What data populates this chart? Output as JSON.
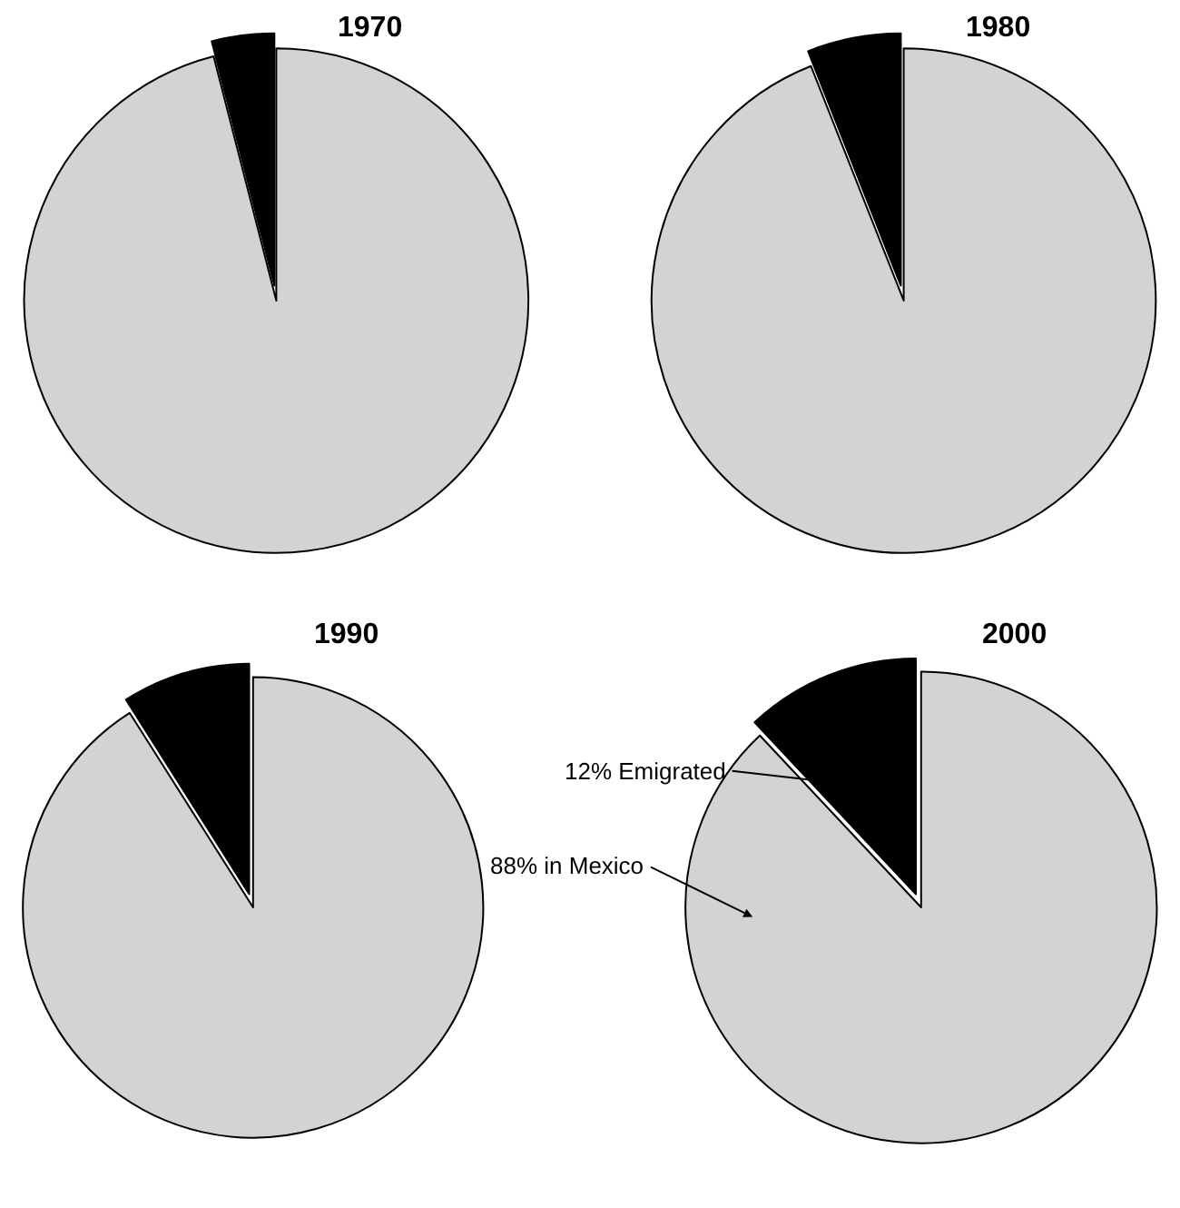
{
  "chart_data": [
    {
      "type": "pie",
      "title": "1970",
      "categories": [
        null,
        null
      ],
      "values": [
        96,
        4
      ],
      "colors": [
        "#d3d3d3",
        "#000000"
      ]
    },
    {
      "type": "pie",
      "title": "1980",
      "categories": [
        null,
        null
      ],
      "values": [
        94,
        6
      ],
      "colors": [
        "#d3d3d3",
        "#000000"
      ]
    },
    {
      "type": "pie",
      "title": "1990",
      "categories": [
        null,
        null
      ],
      "values": [
        91,
        9
      ],
      "colors": [
        "#d3d3d3",
        "#000000"
      ]
    },
    {
      "type": "pie",
      "title": "2000",
      "categories": [
        null,
        null
      ],
      "values": [
        88,
        12
      ],
      "colors": [
        "#d3d3d3",
        "#000000"
      ],
      "annotations": [
        "88% in Mexico",
        "12% Emigrated"
      ]
    }
  ]
}
